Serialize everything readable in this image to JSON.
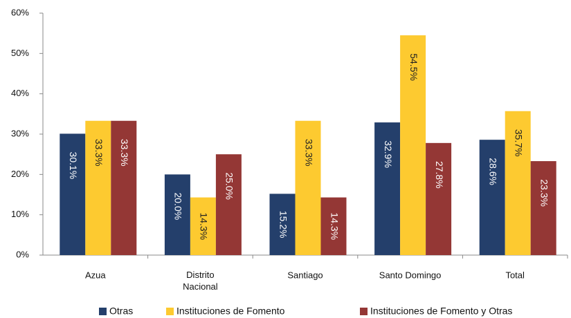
{
  "chart_data": {
    "type": "bar",
    "categories": [
      "Azua",
      "Distrito\nNacional",
      "Santiago",
      "Santo Domingo",
      "Total"
    ],
    "series": [
      {
        "name": "Otras",
        "color": "#243f6b",
        "values": [
          30.1,
          20.0,
          15.2,
          32.9,
          28.6
        ],
        "value_labels": [
          "30.1%",
          "20.0%",
          "15.2%",
          "32.9%",
          "28.6%"
        ]
      },
      {
        "name": "Instituciones de Fomento",
        "color": "#fdca30",
        "values": [
          33.3,
          14.3,
          33.3,
          54.5,
          35.7
        ],
        "value_labels": [
          "33.3%",
          "14.3%",
          "33.3%",
          "54.5%",
          "35.7%"
        ]
      },
      {
        "name": "Instituciones de Fomento y Otras",
        "color": "#943735",
        "values": [
          33.3,
          25.0,
          14.3,
          27.8,
          23.3
        ],
        "value_labels": [
          "33.3%",
          "25.0%",
          "14.3%",
          "27.8%",
          "23.3%"
        ]
      }
    ],
    "ylim": [
      0,
      60
    ],
    "yticks": [
      {
        "value": 0,
        "label": "0%"
      },
      {
        "value": 10,
        "label": "10%"
      },
      {
        "value": 20,
        "label": "20%"
      },
      {
        "value": 30,
        "label": "30%"
      },
      {
        "value": 40,
        "label": "40%"
      },
      {
        "value": 50,
        "label": "50%"
      },
      {
        "value": 60,
        "label": "60%"
      }
    ],
    "legend": "bottom"
  }
}
